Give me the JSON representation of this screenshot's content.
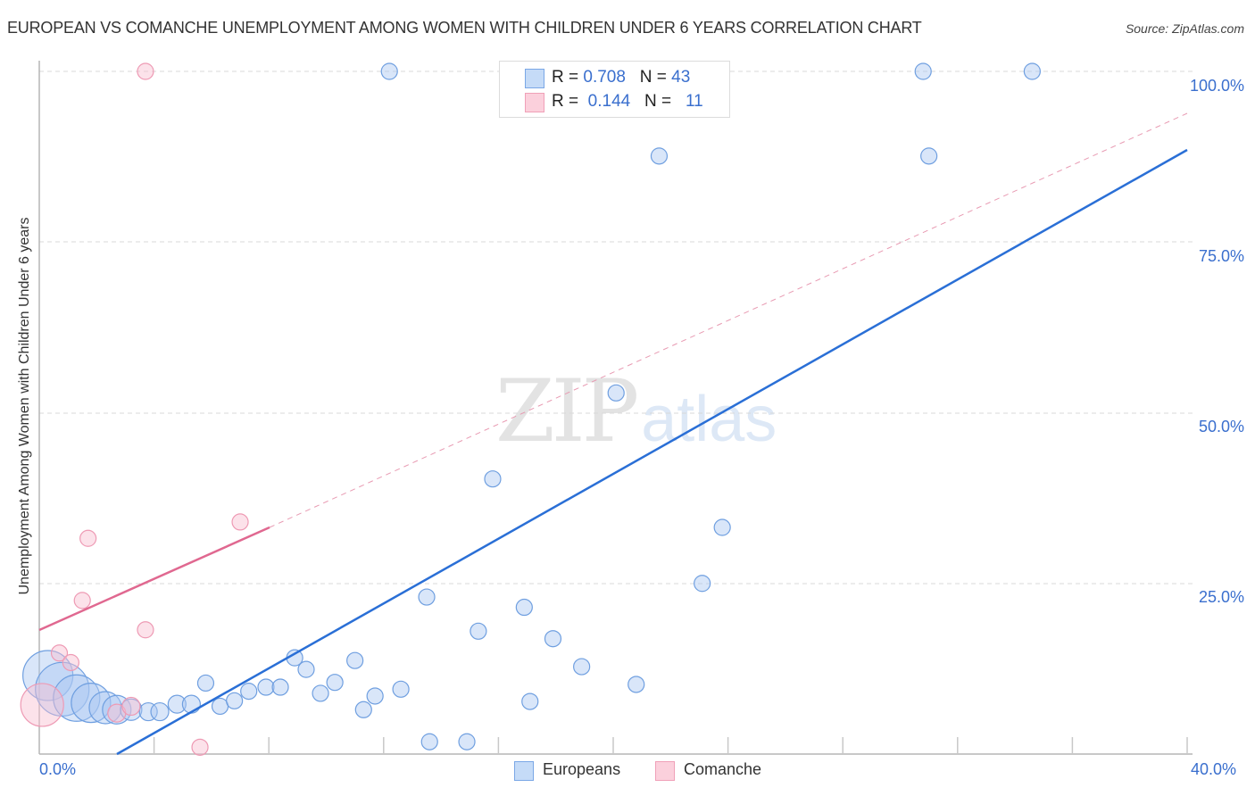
{
  "header": {
    "title": "EUROPEAN VS COMANCHE UNEMPLOYMENT AMONG WOMEN WITH CHILDREN UNDER 6 YEARS CORRELATION CHART",
    "source": "Source: ZipAtlas.com"
  },
  "stats": {
    "europeans": {
      "r_label": "R = ",
      "r_value": "0.708",
      "n_label": "N = ",
      "n_value": "43",
      "color": "#aecbf2"
    },
    "comanche": {
      "r_label": "R = ",
      "r_value": "0.144",
      "n_label": "N = ",
      "n_value": "11",
      "color": "#f9c0d0"
    }
  },
  "axes": {
    "y_title": "Unemployment Among Women with Children Under 6 years",
    "y_ticks": [
      "100.0%",
      "75.0%",
      "50.0%",
      "25.0%"
    ],
    "x_ticks": [
      "0.0%",
      "40.0%"
    ]
  },
  "legend": {
    "europeans": "Europeans",
    "comanche": "Comanche"
  },
  "watermark": {
    "zip": "ZIP",
    "atlas": "atlas"
  },
  "chart_data": {
    "type": "scatter",
    "title": "EUROPEAN VS COMANCHE UNEMPLOYMENT AMONG WOMEN WITH CHILDREN UNDER 6 YEARS CORRELATION CHART",
    "xlabel": "",
    "ylabel": "Unemployment Among Women with Children Under 6 years",
    "xlim": [
      0,
      40
    ],
    "ylim": [
      0,
      100
    ],
    "x_tick_labels": [
      "0.0%",
      "40.0%"
    ],
    "y_tick_labels": [
      "25.0%",
      "50.0%",
      "75.0%",
      "100.0%"
    ],
    "grid": true,
    "legend_position": "bottom",
    "series": [
      {
        "name": "Europeans",
        "color": "#7aa7e6",
        "line_color": "#2a6fd6",
        "R": 0.708,
        "N": 43,
        "trendline": {
          "x": [
            2.7,
            40
          ],
          "y": [
            0,
            88.3
          ]
        },
        "points": [
          {
            "x": 0.3,
            "y": 11.5,
            "size": 28
          },
          {
            "x": 0.8,
            "y": 9.5,
            "size": 30
          },
          {
            "x": 1.3,
            "y": 8.2,
            "size": 26
          },
          {
            "x": 1.8,
            "y": 7.5,
            "size": 22
          },
          {
            "x": 2.3,
            "y": 6.8,
            "size": 18
          },
          {
            "x": 2.7,
            "y": 6.5,
            "size": 16
          },
          {
            "x": 3.2,
            "y": 6.5,
            "size": 12
          },
          {
            "x": 3.8,
            "y": 6.2,
            "size": 10
          },
          {
            "x": 4.2,
            "y": 6.2,
            "size": 10
          },
          {
            "x": 4.8,
            "y": 7.3,
            "size": 10
          },
          {
            "x": 5.3,
            "y": 7.3,
            "size": 10
          },
          {
            "x": 5.8,
            "y": 10.4,
            "size": 9
          },
          {
            "x": 6.3,
            "y": 7.0,
            "size": 9
          },
          {
            "x": 6.8,
            "y": 7.8,
            "size": 9
          },
          {
            "x": 7.3,
            "y": 9.2,
            "size": 9
          },
          {
            "x": 7.9,
            "y": 9.8,
            "size": 9
          },
          {
            "x": 8.4,
            "y": 9.8,
            "size": 9
          },
          {
            "x": 8.9,
            "y": 14.1,
            "size": 9
          },
          {
            "x": 9.3,
            "y": 12.4,
            "size": 9
          },
          {
            "x": 9.8,
            "y": 8.9,
            "size": 9
          },
          {
            "x": 10.3,
            "y": 10.5,
            "size": 9
          },
          {
            "x": 11.0,
            "y": 13.7,
            "size": 9
          },
          {
            "x": 11.3,
            "y": 6.5,
            "size": 9
          },
          {
            "x": 11.7,
            "y": 8.5,
            "size": 9
          },
          {
            "x": 12.6,
            "y": 9.5,
            "size": 9
          },
          {
            "x": 12.2,
            "y": 100.0,
            "size": 9
          },
          {
            "x": 13.5,
            "y": 23.0,
            "size": 9
          },
          {
            "x": 13.6,
            "y": 1.8,
            "size": 9
          },
          {
            "x": 14.9,
            "y": 1.8,
            "size": 9
          },
          {
            "x": 15.3,
            "y": 18.0,
            "size": 9
          },
          {
            "x": 15.8,
            "y": 40.3,
            "size": 9
          },
          {
            "x": 16.9,
            "y": 21.5,
            "size": 9
          },
          {
            "x": 17.1,
            "y": 7.7,
            "size": 9
          },
          {
            "x": 17.9,
            "y": 16.9,
            "size": 9
          },
          {
            "x": 18.9,
            "y": 12.8,
            "size": 9
          },
          {
            "x": 20.1,
            "y": 52.9,
            "size": 9
          },
          {
            "x": 20.8,
            "y": 10.2,
            "size": 9
          },
          {
            "x": 21.6,
            "y": 87.6,
            "size": 9
          },
          {
            "x": 23.1,
            "y": 25.0,
            "size": 9
          },
          {
            "x": 23.8,
            "y": 33.2,
            "size": 9
          },
          {
            "x": 30.8,
            "y": 100.0,
            "size": 9
          },
          {
            "x": 31.0,
            "y": 87.6,
            "size": 9
          },
          {
            "x": 34.6,
            "y": 100.0,
            "size": 9
          }
        ]
      },
      {
        "name": "Comanche",
        "color": "#f2a0b8",
        "line_color": "#e06890",
        "R": 0.144,
        "N": 11,
        "trendline": {
          "x": [
            0,
            8.0
          ],
          "y": [
            18.0,
            33.0
          ],
          "extended_dashed_to": {
            "x": 40,
            "y": 93.9
          }
        },
        "points": [
          {
            "x": 0.1,
            "y": 7.2,
            "size": 24
          },
          {
            "x": 0.7,
            "y": 14.8,
            "size": 9
          },
          {
            "x": 1.1,
            "y": 13.4,
            "size": 9
          },
          {
            "x": 1.5,
            "y": 22.5,
            "size": 9
          },
          {
            "x": 1.7,
            "y": 31.6,
            "size": 9
          },
          {
            "x": 2.7,
            "y": 6.0,
            "size": 10
          },
          {
            "x": 3.2,
            "y": 7.0,
            "size": 10
          },
          {
            "x": 3.7,
            "y": 100.0,
            "size": 9
          },
          {
            "x": 3.7,
            "y": 18.2,
            "size": 9
          },
          {
            "x": 5.6,
            "y": 1.0,
            "size": 9
          },
          {
            "x": 7.0,
            "y": 34.0,
            "size": 9
          }
        ]
      }
    ]
  }
}
